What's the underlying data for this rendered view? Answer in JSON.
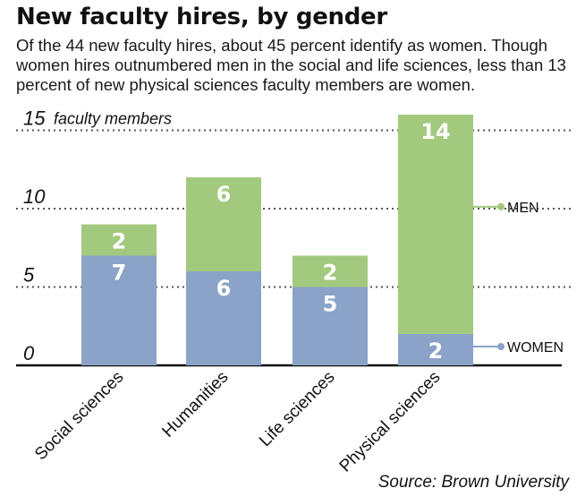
{
  "header": {
    "title": "New faculty hires, by gender",
    "subtitle": "Of the 44 new faculty hires, about 45 percent identify as women. Though women hires outnumbered men in the social and life sciences, less than 13 percent of new physical sciences faculty members are women."
  },
  "footer": {
    "source": "Source: Brown University"
  },
  "colors": {
    "women": "#8aa3c7",
    "men": "#a3c97f",
    "grid": "#555555",
    "axis": "#111111"
  },
  "chart_data": {
    "type": "bar",
    "stacked": true,
    "title": "New faculty hires, by gender",
    "xlabel": "",
    "ylabel": "faculty members",
    "y_unit_label": "faculty members",
    "ylim": [
      0,
      16
    ],
    "y_ticks": [
      0,
      5,
      10,
      15
    ],
    "grid": "dotted",
    "categories": [
      "Social sciences",
      "Humanities",
      "Life sciences",
      "Physical sciences"
    ],
    "series": [
      {
        "name": "WOMEN",
        "values": [
          7,
          6,
          5,
          2
        ]
      },
      {
        "name": "MEN",
        "values": [
          2,
          6,
          2,
          14
        ]
      }
    ],
    "legend": {
      "placement": "right, inline labels",
      "entries": [
        "MEN",
        "WOMEN"
      ]
    }
  }
}
